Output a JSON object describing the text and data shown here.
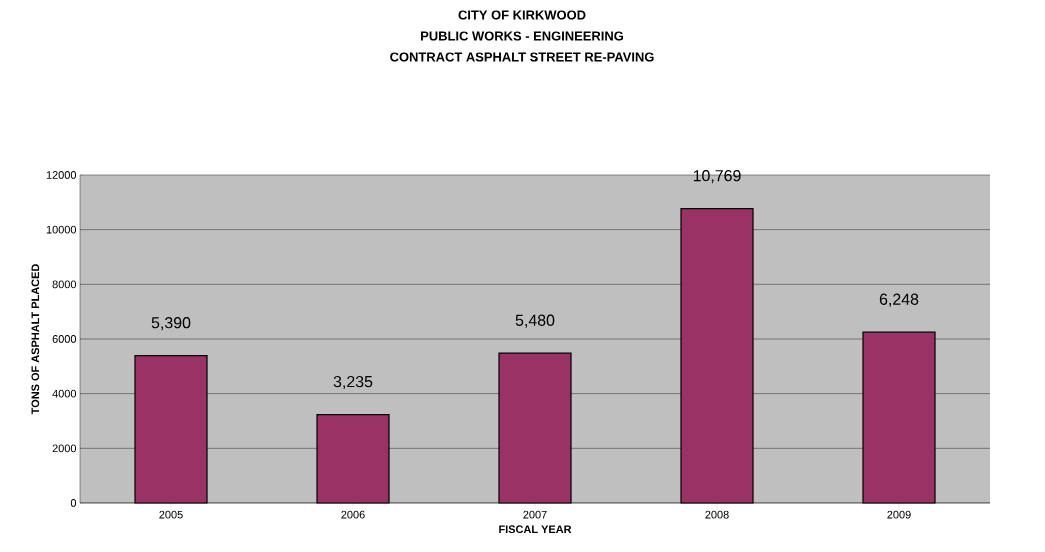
{
  "chart_data": {
    "type": "bar",
    "title": "CITY OF KIRKWOOD",
    "subtitle": "PUBLIC WORKS - ENGINEERING",
    "annotations": [
      "CONTRACT ASPHALT STREET RE-PAVING"
    ],
    "xlabel": "FISCAL YEAR",
    "ylabel": "TONS OF ASPHALT PLACED",
    "categories": [
      "2005",
      "2006",
      "2007",
      "2008",
      "2009"
    ],
    "values": [
      5390,
      3235,
      5480,
      10769,
      6248
    ],
    "value_labels": [
      "5,390",
      "3,235",
      "5,480",
      "10,769",
      "6,248"
    ],
    "color": "#993366",
    "ylim": [
      0,
      12000
    ],
    "yticks": [
      0,
      2000,
      4000,
      6000,
      8000,
      10000,
      12000
    ],
    "grid": "y"
  }
}
